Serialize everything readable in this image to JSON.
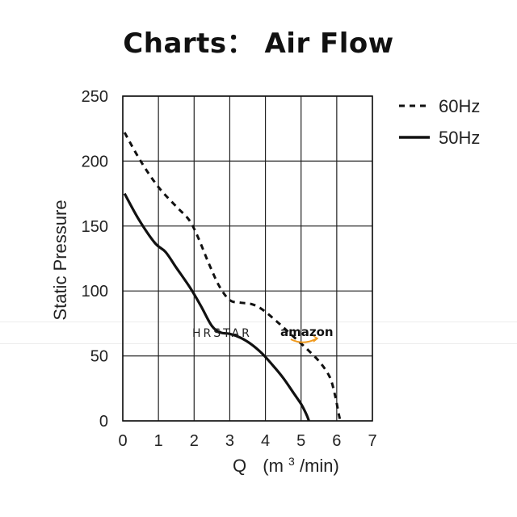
{
  "chart_data": {
    "type": "line",
    "title": "Charts： Air Flow",
    "xlabel_main": "Q",
    "xlabel_unit_pre": "(m",
    "xlabel_unit_sup": "3",
    "xlabel_unit_post": "/min)",
    "ylabel": "Static Pressure",
    "xlim": [
      0,
      7
    ],
    "ylim": [
      0,
      250
    ],
    "x_ticks": [
      0,
      1,
      2,
      3,
      4,
      5,
      6,
      7
    ],
    "y_ticks": [
      0,
      50,
      100,
      150,
      200,
      250
    ],
    "grid": true,
    "legend_position": "top-right",
    "series": [
      {
        "name": "60Hz",
        "style": "dashed",
        "color": "#111111",
        "points": [
          [
            0.05,
            222
          ],
          [
            0.5,
            200
          ],
          [
            1.0,
            180
          ],
          [
            1.5,
            165
          ],
          [
            1.85,
            155
          ],
          [
            2.1,
            142
          ],
          [
            2.4,
            122
          ],
          [
            2.7,
            104
          ],
          [
            3.0,
            93
          ],
          [
            3.3,
            91
          ],
          [
            3.6,
            90
          ],
          [
            3.9,
            86
          ],
          [
            4.3,
            77
          ],
          [
            4.7,
            67
          ],
          [
            5.1,
            57
          ],
          [
            5.5,
            46
          ],
          [
            5.8,
            34
          ],
          [
            5.95,
            20
          ],
          [
            6.05,
            6
          ],
          [
            6.1,
            0
          ]
        ]
      },
      {
        "name": "50Hz",
        "style": "solid",
        "color": "#111111",
        "points": [
          [
            0.05,
            175
          ],
          [
            0.45,
            155
          ],
          [
            0.9,
            137
          ],
          [
            1.2,
            130
          ],
          [
            1.5,
            118
          ],
          [
            1.9,
            102
          ],
          [
            2.2,
            88
          ],
          [
            2.5,
            73
          ],
          [
            2.75,
            68
          ],
          [
            3.0,
            67
          ],
          [
            3.3,
            64
          ],
          [
            3.6,
            59
          ],
          [
            3.9,
            52
          ],
          [
            4.2,
            43
          ],
          [
            4.5,
            33
          ],
          [
            4.8,
            21
          ],
          [
            5.0,
            13
          ],
          [
            5.15,
            5
          ],
          [
            5.22,
            0
          ]
        ]
      }
    ]
  },
  "watermarks": {
    "brand": "HRSTAR",
    "store": "amazon"
  },
  "colors": {
    "axis": "#111111",
    "grid": "#222222",
    "amazon_arrow": "#f09a1e"
  }
}
